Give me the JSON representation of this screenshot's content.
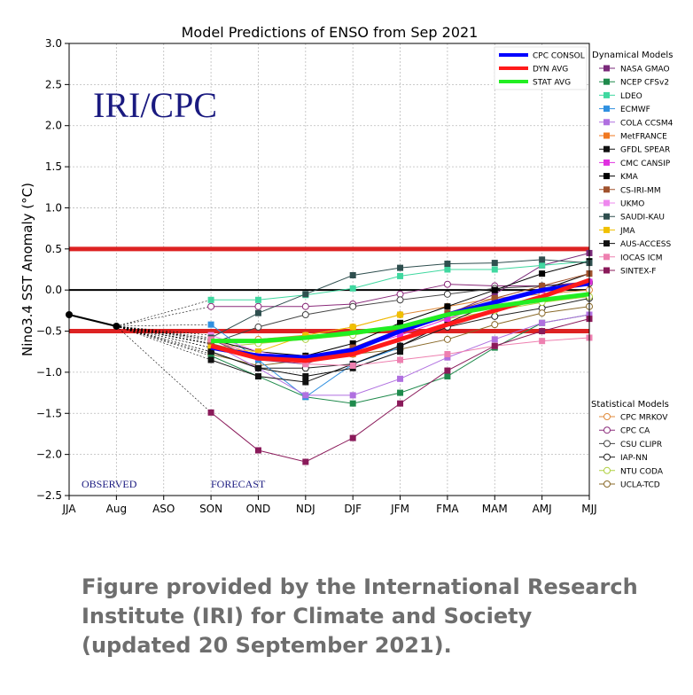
{
  "caption": {
    "line1": "Figure provided by the International Research",
    "line2": "Institute (IRI) for Climate and Society",
    "line3": "(updated 20 September 2021)."
  },
  "chart_data": {
    "type": "line",
    "title": "Model Predictions of ENSO from Sep 2021",
    "watermark": "IRI/CPC",
    "ylabel": "Nino3.4 SST Anomaly (°C)",
    "xlabel": "",
    "ylim": [
      -2.5,
      3.0
    ],
    "yticks": [
      "3.0",
      "2.5",
      "2.0",
      "1.5",
      "1.0",
      "0.5",
      "0.0",
      "−0.5",
      "−1.0",
      "−1.5",
      "−2.0",
      "−2.5"
    ],
    "ytick_values": [
      3.0,
      2.5,
      2.0,
      1.5,
      1.0,
      0.5,
      0.0,
      -0.5,
      -1.0,
      -1.5,
      -2.0,
      -2.5
    ],
    "categories": [
      "JJA",
      "Aug",
      "ASO",
      "SON",
      "OND",
      "NDJ",
      "DJF",
      "JFM",
      "FMA",
      "MAM",
      "AMJ",
      "MJJ"
    ],
    "observed_label": "OBSERVED",
    "forecast_label": "FORECAST",
    "observed": [
      -0.3,
      -0.44
    ],
    "thresholds": [
      0.5,
      -0.5
    ],
    "threshold_color": "#dd2222",
    "zero_line": 0.0,
    "consensus": [
      {
        "name": "CPC CONSOL",
        "color": "#0000ff",
        "values": [
          -0.7,
          -0.8,
          -0.82,
          -0.73,
          -0.5,
          -0.3,
          -0.15,
          0.0,
          0.08
        ]
      },
      {
        "name": "DYN AVG",
        "color": "#ff1a1a",
        "values": [
          -0.68,
          -0.83,
          -0.86,
          -0.78,
          -0.6,
          -0.42,
          -0.25,
          -0.08,
          0.12
        ]
      },
      {
        "name": "STAT AVG",
        "color": "#22ee22",
        "values": [
          -0.62,
          -0.62,
          -0.58,
          -0.52,
          -0.45,
          -0.3,
          -0.2,
          -0.12,
          -0.05
        ]
      }
    ],
    "dynamical_title": "Dynamical Models",
    "dynamical": [
      {
        "name": "NASA GMAO",
        "color": "#7a2a7a",
        "values": [
          -0.6,
          -0.85,
          -0.9,
          -0.7,
          -0.5,
          -0.3,
          -0.05,
          0.3,
          0.45
        ]
      },
      {
        "name": "NCEP CFSv2",
        "color": "#1f8a4c",
        "values": [
          -0.8,
          -1.05,
          -1.3,
          -1.38,
          -1.25,
          -1.05,
          -0.7,
          -0.4,
          -0.3
        ]
      },
      {
        "name": "LDEO",
        "color": "#40d8a0",
        "values": [
          -0.12,
          -0.12,
          -0.06,
          0.02,
          0.17,
          0.25,
          0.25,
          0.3,
          0.35
        ]
      },
      {
        "name": "ECMWF",
        "color": "#3090e0",
        "values": [
          -0.42,
          -0.85,
          -1.3,
          -0.9,
          -0.7
        ]
      },
      {
        "name": "COLA CCSM4",
        "color": "#b070e0",
        "values": [
          -0.65,
          -0.95,
          -1.28,
          -1.28,
          -1.08,
          -0.82,
          -0.6,
          -0.4,
          -0.3
        ]
      },
      {
        "name": "MetFRANCE",
        "color": "#f07820",
        "values": [
          -0.6,
          -0.8,
          -0.88,
          -0.78
        ]
      },
      {
        "name": "GFDL SPEAR",
        "color": "#111111",
        "values": [
          -0.85,
          -1.05,
          -1.12,
          -0.9,
          -0.68,
          -0.4,
          -0.15,
          0.0,
          0.2
        ]
      },
      {
        "name": "CMC CANSIP",
        "color": "#e030e0",
        "values": [
          -0.66,
          -0.82,
          -0.85,
          -0.72,
          -0.55,
          -0.35,
          -0.15,
          0.0,
          0.1
        ]
      },
      {
        "name": "KMA",
        "color": "#000000",
        "values": [
          -0.6,
          -0.75,
          -0.8,
          -0.65,
          -0.4,
          -0.2,
          0.0,
          0.2,
          0.35
        ]
      },
      {
        "name": "CS-IRI-MM",
        "color": "#a0522d",
        "values": [
          -0.65,
          -0.8,
          -0.82,
          -0.7,
          -0.48,
          -0.28,
          -0.1,
          0.05,
          0.2
        ]
      },
      {
        "name": "UKMO",
        "color": "#ee88ee",
        "values": [
          -0.55,
          -0.75,
          -0.85
        ]
      },
      {
        "name": "SAUDI-KAU",
        "color": "#2f4f4f",
        "values": [
          -0.58,
          -0.28,
          -0.05,
          0.18,
          0.27,
          0.32,
          0.33,
          0.37,
          0.33
        ]
      },
      {
        "name": "JMA",
        "color": "#f0c000",
        "values": [
          -0.7,
          -0.75,
          -0.55,
          -0.45,
          -0.3
        ]
      },
      {
        "name": "AUS-ACCESS",
        "color": "#101010",
        "values": [
          -0.75,
          -0.95,
          -1.05,
          -0.95,
          -0.75
        ]
      },
      {
        "name": "IOCAS ICM",
        "color": "#ee80b0",
        "values": [
          -0.6,
          -0.8,
          -0.9,
          -0.92,
          -0.85,
          -0.78,
          -0.68,
          -0.62,
          -0.58
        ]
      },
      {
        "name": "SINTEX-F",
        "color": "#8a1a5a",
        "values": [
          -1.49,
          -1.95,
          -2.09,
          -1.8,
          -1.38,
          -0.98,
          -0.68,
          -0.5,
          -0.35
        ]
      }
    ],
    "statistical_title": "Statistical Models",
    "statistical": [
      {
        "name": "CPC MRKOV",
        "color": "#e08a3a",
        "values": [
          -0.62,
          -0.6,
          -0.55,
          -0.45,
          -0.3,
          -0.2,
          -0.1,
          -0.05,
          0.0
        ]
      },
      {
        "name": "CPC CA",
        "color": "#8a2a7a",
        "values": [
          -0.2,
          -0.2,
          -0.2,
          -0.17,
          -0.05,
          0.07,
          0.05,
          0.05,
          0.1
        ]
      },
      {
        "name": "CSU CLIPR",
        "color": "#444444",
        "values": [
          -0.65,
          -0.45,
          -0.3,
          -0.2,
          -0.12,
          -0.05,
          0.02,
          0.05,
          0.08
        ]
      },
      {
        "name": "IAP-NN",
        "color": "#222222",
        "values": [
          -0.75,
          -0.95,
          -0.95,
          -0.9,
          -0.68,
          -0.45,
          -0.32,
          -0.22,
          -0.1
        ]
      },
      {
        "name": "NTU CODA",
        "color": "#b0d040",
        "values": [
          -0.7,
          -0.65,
          -0.6,
          -0.55,
          -0.45,
          -0.35,
          -0.25,
          -0.15,
          -0.08
        ]
      },
      {
        "name": "UCLA-TCD",
        "color": "#8a6a2a",
        "values": [
          -0.78,
          -0.92,
          -0.85,
          -0.78,
          -0.72,
          -0.6,
          -0.42,
          -0.28,
          -0.2
        ]
      }
    ]
  }
}
